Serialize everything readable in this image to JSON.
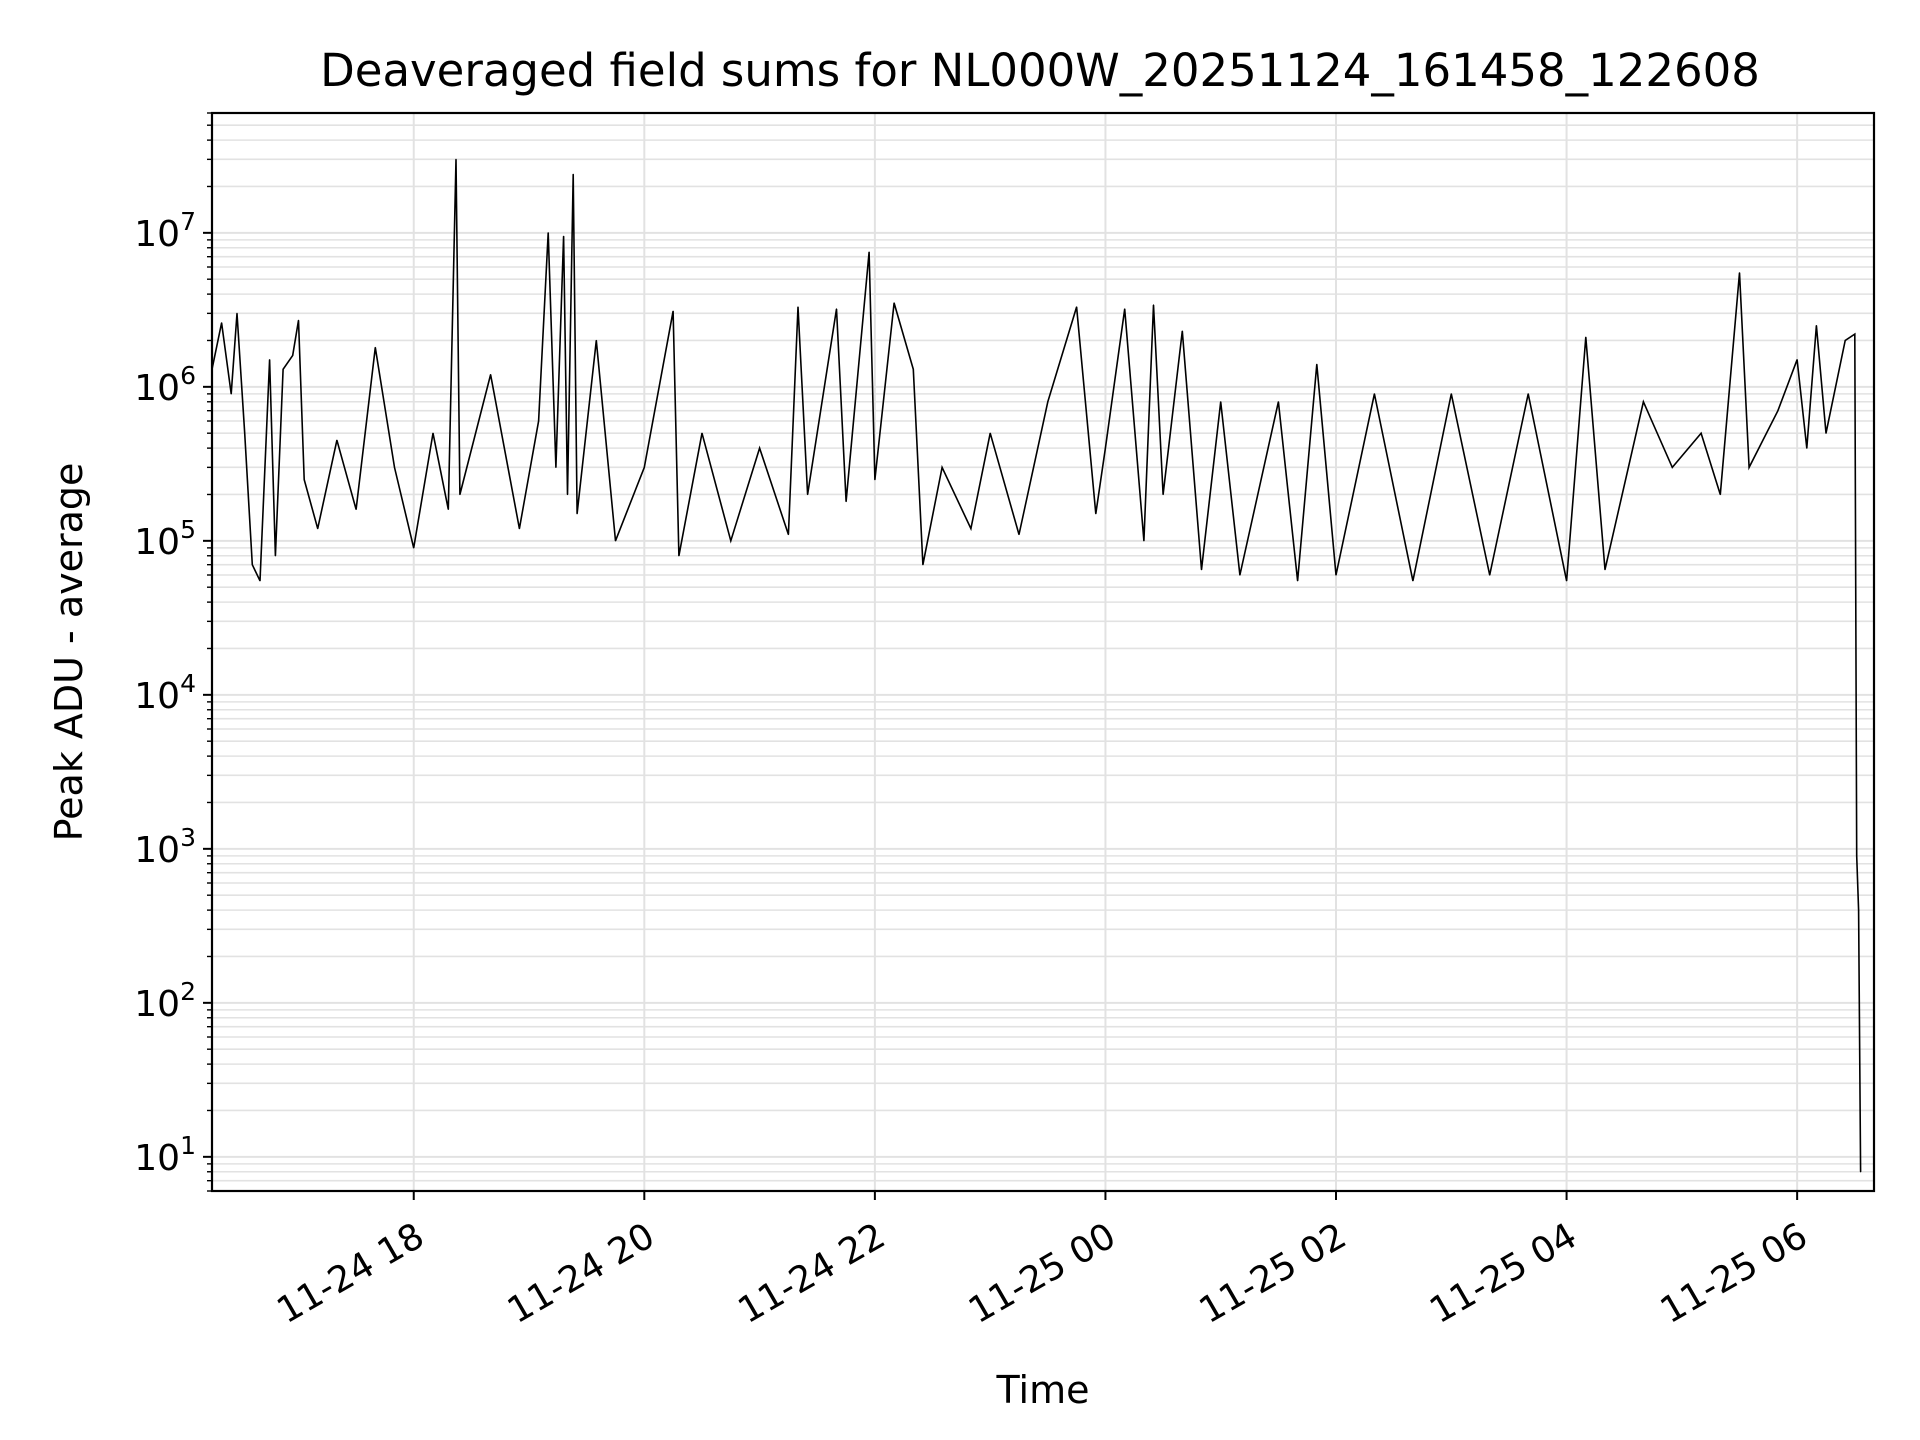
{
  "chart_data": {
    "type": "line",
    "title": "Deaveraged field sums for NL000W_20251124_161458_122608",
    "xlabel": "Time",
    "ylabel": "Peak ADU - average",
    "yscale": "log",
    "ylim": [
      6,
      60000000
    ],
    "xlim": [
      "2025-11-24 16:15",
      "2025-11-25 06:40"
    ],
    "grid": true,
    "line_color": "#000000",
    "grid_color": "#e2e2e2",
    "x_ticks": [
      {
        "value": "2025-11-24 18:00",
        "label": "11-24 18"
      },
      {
        "value": "2025-11-24 20:00",
        "label": "11-24 20"
      },
      {
        "value": "2025-11-24 22:00",
        "label": "11-24 22"
      },
      {
        "value": "2025-11-25 00:00",
        "label": "11-25 00"
      },
      {
        "value": "2025-11-25 02:00",
        "label": "11-25 02"
      },
      {
        "value": "2025-11-25 04:00",
        "label": "11-25 04"
      },
      {
        "value": "2025-11-25 06:00",
        "label": "11-25 06"
      }
    ],
    "y_ticks": [
      {
        "value": 10,
        "base": "10",
        "exp": "1"
      },
      {
        "value": 100,
        "base": "10",
        "exp": "2"
      },
      {
        "value": 1000,
        "base": "10",
        "exp": "3"
      },
      {
        "value": 10000,
        "base": "10",
        "exp": "4"
      },
      {
        "value": 100000,
        "base": "10",
        "exp": "5"
      },
      {
        "value": 1000000,
        "base": "10",
        "exp": "6"
      },
      {
        "value": 10000000,
        "base": "10",
        "exp": "7"
      }
    ],
    "series": [
      {
        "values": [
          [
            "2025-11-24 16:15",
            1300000
          ],
          [
            "2025-11-24 16:20",
            2600000
          ],
          [
            "2025-11-24 16:25",
            900000
          ],
          [
            "2025-11-24 16:28",
            3000000
          ],
          [
            "2025-11-24 16:32",
            500000
          ],
          [
            "2025-11-24 16:36",
            70000
          ],
          [
            "2025-11-24 16:40",
            55000
          ],
          [
            "2025-11-24 16:45",
            1500000
          ],
          [
            "2025-11-24 16:48",
            80000
          ],
          [
            "2025-11-24 16:52",
            1300000
          ],
          [
            "2025-11-24 16:57",
            1600000
          ],
          [
            "2025-11-24 17:00",
            2700000
          ],
          [
            "2025-11-24 17:03",
            250000
          ],
          [
            "2025-11-24 17:10",
            120000
          ],
          [
            "2025-11-24 17:20",
            450000
          ],
          [
            "2025-11-24 17:30",
            160000
          ],
          [
            "2025-11-24 17:40",
            1800000
          ],
          [
            "2025-11-24 17:50",
            300000
          ],
          [
            "2025-11-24 18:00",
            90000
          ],
          [
            "2025-11-24 18:10",
            500000
          ],
          [
            "2025-11-24 18:18",
            160000
          ],
          [
            "2025-11-24 18:22",
            30000000
          ],
          [
            "2025-11-24 18:24",
            200000
          ],
          [
            "2025-11-24 18:40",
            1200000
          ],
          [
            "2025-11-24 18:55",
            120000
          ],
          [
            "2025-11-24 19:05",
            600000
          ],
          [
            "2025-11-24 19:10",
            10000000
          ],
          [
            "2025-11-24 19:14",
            300000
          ],
          [
            "2025-11-24 19:18",
            9500000
          ],
          [
            "2025-11-24 19:20",
            200000
          ],
          [
            "2025-11-24 19:23",
            24000000
          ],
          [
            "2025-11-24 19:25",
            150000
          ],
          [
            "2025-11-24 19:35",
            2000000
          ],
          [
            "2025-11-24 19:45",
            100000
          ],
          [
            "2025-11-24 20:00",
            300000
          ],
          [
            "2025-11-24 20:15",
            3100000
          ],
          [
            "2025-11-24 20:18",
            80000
          ],
          [
            "2025-11-24 20:30",
            500000
          ],
          [
            "2025-11-24 20:45",
            100000
          ],
          [
            "2025-11-24 21:00",
            400000
          ],
          [
            "2025-11-24 21:15",
            110000
          ],
          [
            "2025-11-24 21:20",
            3300000
          ],
          [
            "2025-11-24 21:25",
            200000
          ],
          [
            "2025-11-24 21:40",
            3200000
          ],
          [
            "2025-11-24 21:45",
            180000
          ],
          [
            "2025-11-24 21:57",
            7500000
          ],
          [
            "2025-11-24 22:00",
            250000
          ],
          [
            "2025-11-24 22:10",
            3500000
          ],
          [
            "2025-11-24 22:20",
            1300000
          ],
          [
            "2025-11-24 22:25",
            70000
          ],
          [
            "2025-11-24 22:35",
            300000
          ],
          [
            "2025-11-24 22:50",
            120000
          ],
          [
            "2025-11-24 23:00",
            500000
          ],
          [
            "2025-11-24 23:15",
            110000
          ],
          [
            "2025-11-24 23:30",
            800000
          ],
          [
            "2025-11-24 23:45",
            3300000
          ],
          [
            "2025-11-24 23:55",
            150000
          ],
          [
            "2025-11-25 00:00",
            400000
          ],
          [
            "2025-11-25 00:10",
            3200000
          ],
          [
            "2025-11-25 00:20",
            100000
          ],
          [
            "2025-11-25 00:25",
            3400000
          ],
          [
            "2025-11-25 00:30",
            200000
          ],
          [
            "2025-11-25 00:40",
            2300000
          ],
          [
            "2025-11-25 00:50",
            65000
          ],
          [
            "2025-11-25 01:00",
            800000
          ],
          [
            "2025-11-25 01:10",
            60000
          ],
          [
            "2025-11-25 01:30",
            800000
          ],
          [
            "2025-11-25 01:40",
            55000
          ],
          [
            "2025-11-25 01:50",
            1400000
          ],
          [
            "2025-11-25 02:00",
            60000
          ],
          [
            "2025-11-25 02:20",
            900000
          ],
          [
            "2025-11-25 02:40",
            55000
          ],
          [
            "2025-11-25 03:00",
            900000
          ],
          [
            "2025-11-25 03:20",
            60000
          ],
          [
            "2025-11-25 03:40",
            900000
          ],
          [
            "2025-11-25 04:00",
            55000
          ],
          [
            "2025-11-25 04:10",
            2100000
          ],
          [
            "2025-11-25 04:20",
            65000
          ],
          [
            "2025-11-25 04:40",
            800000
          ],
          [
            "2025-11-25 04:55",
            300000
          ],
          [
            "2025-11-25 05:10",
            500000
          ],
          [
            "2025-11-25 05:20",
            200000
          ],
          [
            "2025-11-25 05:30",
            5500000
          ],
          [
            "2025-11-25 05:35",
            300000
          ],
          [
            "2025-11-25 05:50",
            700000
          ],
          [
            "2025-11-25 06:00",
            1500000
          ],
          [
            "2025-11-25 06:05",
            400000
          ],
          [
            "2025-11-25 06:10",
            2500000
          ],
          [
            "2025-11-25 06:15",
            500000
          ],
          [
            "2025-11-25 06:25",
            2000000
          ],
          [
            "2025-11-25 06:30",
            2200000
          ],
          [
            "2025-11-25 06:31",
            900
          ],
          [
            "2025-11-25 06:32",
            400
          ],
          [
            "2025-11-25 06:33",
            8
          ]
        ]
      }
    ]
  }
}
